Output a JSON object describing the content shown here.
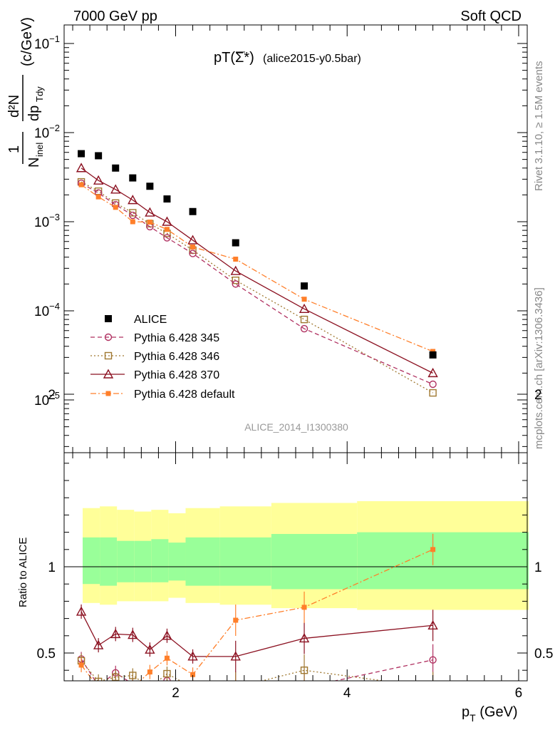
{
  "header": {
    "left": "7000 GeV pp",
    "right": "Soft QCD"
  },
  "side_labels": {
    "rivet": "Rivet 3.1.10, ≥ 1.5M events",
    "mcplots": "mcplots.cern.ch [arXiv:1306.3436]"
  },
  "plot_title": {
    "main": "pT(Σ*)",
    "sub": "(alice2015-y0.5bar)"
  },
  "watermark": "ALICE_2014_I1300380",
  "y_axis_label": "1/N_inel d²N/dp_T dy (c/GeV)",
  "ratio_ylabel": "Ratio to ALICE",
  "x_axis_label": "p_T (GeV)",
  "colors": {
    "alice": "#000000",
    "p345": "#b03060",
    "p346": "#a07830",
    "p370": "#8b1020",
    "pdefault": "#ff7f2a",
    "band_outer": "#ffff99",
    "band_inner": "#99ff99"
  },
  "chart_data": {
    "type": "scatter",
    "main_panel": {
      "y_scale": "log",
      "ylim": [
        2.6e-06,
        0.15
      ],
      "y_ticks": [
        "10^-5",
        "10^-4",
        "10^-3",
        "10^-2",
        "10^-1"
      ],
      "x": [
        0.9,
        1.1,
        1.3,
        1.5,
        1.7,
        1.9,
        2.2,
        2.7,
        3.5,
        5.0
      ],
      "series": [
        {
          "name": "ALICE",
          "key": "alice",
          "marker": "filled-square",
          "line": "none",
          "values": [
            0.0058,
            0.0055,
            0.004,
            0.0031,
            0.0025,
            0.0018,
            0.0013,
            0.00058,
            0.00019,
            3.2e-05
          ]
        },
        {
          "name": "Pythia 6.428 345",
          "key": "p345",
          "marker": "open-circle",
          "line": "dashed",
          "values": [
            0.0027,
            0.0021,
            0.00155,
            0.00118,
            0.00088,
            0.00066,
            0.00044,
            0.0002,
            6.3e-05,
            1.5e-05
          ]
        },
        {
          "name": "Pythia 6.428 346",
          "key": "p346",
          "marker": "open-square",
          "line": "dotted",
          "values": [
            0.0028,
            0.0022,
            0.00162,
            0.00126,
            0.00095,
            0.00074,
            0.00048,
            0.00022,
            8e-05,
            1.2e-05
          ]
        },
        {
          "name": "Pythia 6.428 370",
          "key": "p370",
          "marker": "open-triangle",
          "line": "solid",
          "values": [
            0.004,
            0.0029,
            0.0023,
            0.00175,
            0.00127,
            0.001,
            0.00062,
            0.00028,
            0.000105,
            2e-05
          ]
        },
        {
          "name": "Pythia 6.428 default",
          "key": "pdefault",
          "marker": "filled-small-square",
          "line": "dashdot",
          "values": [
            0.0026,
            0.0019,
            0.00145,
            0.001,
            0.00099,
            0.00082,
            0.00052,
            0.00038,
            0.000135,
            3.5e-05
          ]
        }
      ]
    },
    "ratio_panel": {
      "ylabel": "Ratio to ALICE",
      "ylim": [
        0.33,
        2.3
      ],
      "y_ticks": [
        "0.5",
        "1",
        "2"
      ],
      "x_ticks": [
        "2",
        "4",
        "6"
      ],
      "xlim": [
        0.7,
        6.1
      ],
      "band_edges": [
        0.8,
        1.0,
        1.2,
        1.4,
        1.6,
        1.8,
        2.0,
        2.4,
        3.0,
        4.0,
        6.0
      ],
      "band_outer": [
        [
          0.79,
          1.34
        ],
        [
          0.78,
          1.35
        ],
        [
          0.8,
          1.33
        ],
        [
          0.8,
          1.32
        ],
        [
          0.8,
          1.33
        ],
        [
          0.82,
          1.31
        ],
        [
          0.79,
          1.34
        ],
        [
          0.78,
          1.35
        ],
        [
          0.76,
          1.37
        ],
        [
          0.75,
          1.38
        ]
      ],
      "band_inner": [
        [
          0.9,
          1.17
        ],
        [
          0.89,
          1.17
        ],
        [
          0.91,
          1.15
        ],
        [
          0.91,
          1.15
        ],
        [
          0.91,
          1.16
        ],
        [
          0.92,
          1.14
        ],
        [
          0.89,
          1.17
        ],
        [
          0.89,
          1.17
        ],
        [
          0.87,
          1.19
        ],
        [
          0.87,
          1.2
        ]
      ],
      "series": [
        {
          "key": "p345",
          "values": [
            0.465,
            0.31,
            0.385,
            0.32,
            0.3,
            0.34,
            0.3,
            0.3,
            0.3,
            0.46
          ]
        },
        {
          "key": "p346",
          "values": [
            0.455,
            0.335,
            0.36,
            0.37,
            0.3,
            0.38,
            0.3,
            0.3,
            0.4,
            0.3
          ]
        },
        {
          "key": "p370",
          "values": [
            0.74,
            0.545,
            0.61,
            0.605,
            0.52,
            0.6,
            0.48,
            0.48,
            0.585,
            0.66
          ]
        },
        {
          "key": "pdefault",
          "values": [
            0.43,
            0.3,
            0.3,
            0.3,
            0.39,
            0.47,
            0.375,
            0.69,
            0.765,
            1.1
          ]
        }
      ]
    }
  }
}
